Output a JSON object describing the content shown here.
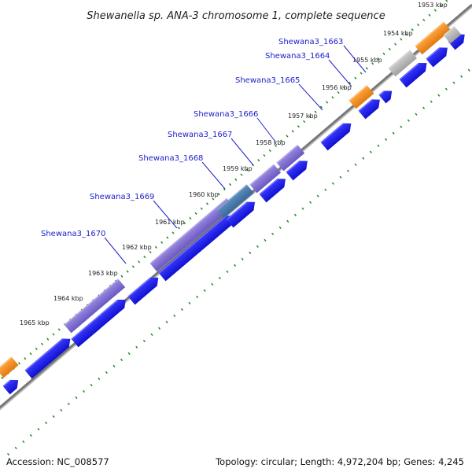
{
  "title": "Shewanella sp. ANA-3 chromosome 1, complete sequence",
  "accession": "Accession: NC_008577",
  "topology": "Topology: circular; Length: 4,972,204 bp; Genes: 4,245",
  "colors": {
    "forward_cds": "#1a1ae6",
    "reverse_cds": "#7766cc",
    "selected_cds": "#4a7aa8",
    "orange_feature": "#f08c1c",
    "gray_feature": "#b4b4b4",
    "backbone": "#888888",
    "ticks": "#1e8a1e",
    "gene_label": "#1f22c9"
  },
  "kbp_ticks": [
    "1953 kbp",
    "1954 kbp",
    "1955 kbp",
    "1956 kbp",
    "1957 kbp",
    "1958 kbp",
    "1959 kbp",
    "1960 kbp",
    "1961 kbp",
    "1962 kbp",
    "1963 kbp",
    "1964 kbp",
    "1965 kbp"
  ],
  "gene_labels": [
    "Shewana3_1663",
    "Shewana3_1664",
    "Shewana3_1665",
    "Shewana3_1666",
    "Shewana3_1667",
    "Shewana3_1668",
    "Shewana3_1669",
    "Shewana3_1670"
  ]
}
